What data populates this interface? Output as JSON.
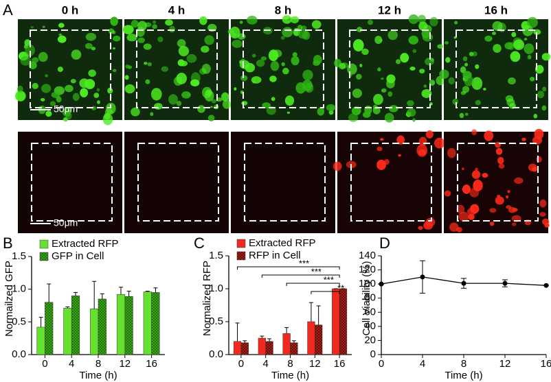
{
  "figure": {
    "panel_labels": [
      "A",
      "B",
      "C",
      "D"
    ],
    "time_labels": [
      "0 h",
      "4 h",
      "8 h",
      "12 h",
      "16 h"
    ],
    "scale_bar": "50μm"
  },
  "chart_data": [
    {
      "type": "bar",
      "ylabel": "Normailzed GFP",
      "xlabel": "Time (h)",
      "categories": [
        "0",
        "4",
        "8",
        "12",
        "16"
      ],
      "series": [
        {
          "name": "Extracted RFP",
          "color": "#66e02e",
          "hatch": false,
          "values": [
            0.42,
            0.71,
            0.7,
            0.92,
            0.96
          ],
          "errors": [
            0.15,
            0.02,
            0.42,
            0.11,
            0.01
          ]
        },
        {
          "name": "GFP in Cell",
          "color": "#3fae1c",
          "hatch": true,
          "values": [
            0.8,
            0.9,
            0.85,
            0.89,
            0.95
          ],
          "errors": [
            0.28,
            0.05,
            0.08,
            0.08,
            0.07
          ]
        }
      ],
      "ylim": [
        0,
        1.5
      ],
      "yticks": [
        {
          "value": 0,
          "label": "0.0"
        },
        0.5,
        {
          "value": 1,
          "label": "1.0"
        },
        1.5
      ],
      "legend": "upper left"
    },
    {
      "type": "bar",
      "ylabel": "Normalized RFP",
      "xlabel": "Time (h)",
      "categories": [
        "0",
        "4",
        "8",
        "12",
        "16"
      ],
      "series": [
        {
          "name": "Extracted RFP",
          "color": "#f02a1e",
          "hatch": false,
          "values": [
            0.2,
            0.25,
            0.32,
            0.5,
            1.0
          ],
          "errors": [
            0.28,
            0.03,
            0.09,
            0.29,
            0
          ]
        },
        {
          "name": "RFP in Cell",
          "color": "#b0241a",
          "hatch": true,
          "values": [
            0.18,
            0.2,
            0.18,
            0.45,
            1.0
          ],
          "errors": [
            0.03,
            0.04,
            0.03,
            0.29,
            0
          ]
        }
      ],
      "ylim": [
        0,
        1.5
      ],
      "yticks": [
        {
          "value": 0,
          "label": "0.0"
        },
        0.5,
        {
          "value": 1,
          "label": "1.0"
        },
        1.5
      ],
      "legend": "upper left",
      "annotations": [
        "***",
        "***",
        "***",
        "**"
      ]
    },
    {
      "type": "line",
      "ylabel": "Cell Viability (%)",
      "xlabel": "Time (h)",
      "x": [
        0,
        4,
        8,
        12,
        16
      ],
      "values": [
        100,
        110,
        101,
        101,
        98
      ],
      "errors": [
        0,
        23,
        7,
        5,
        0
      ],
      "color": "#000000",
      "xlim": [
        0,
        16
      ],
      "xticks": [
        0,
        4,
        8,
        12,
        16
      ],
      "ylim": [
        0,
        140
      ],
      "yticks": [
        0,
        20,
        40,
        60,
        80,
        100,
        120,
        140
      ]
    }
  ]
}
